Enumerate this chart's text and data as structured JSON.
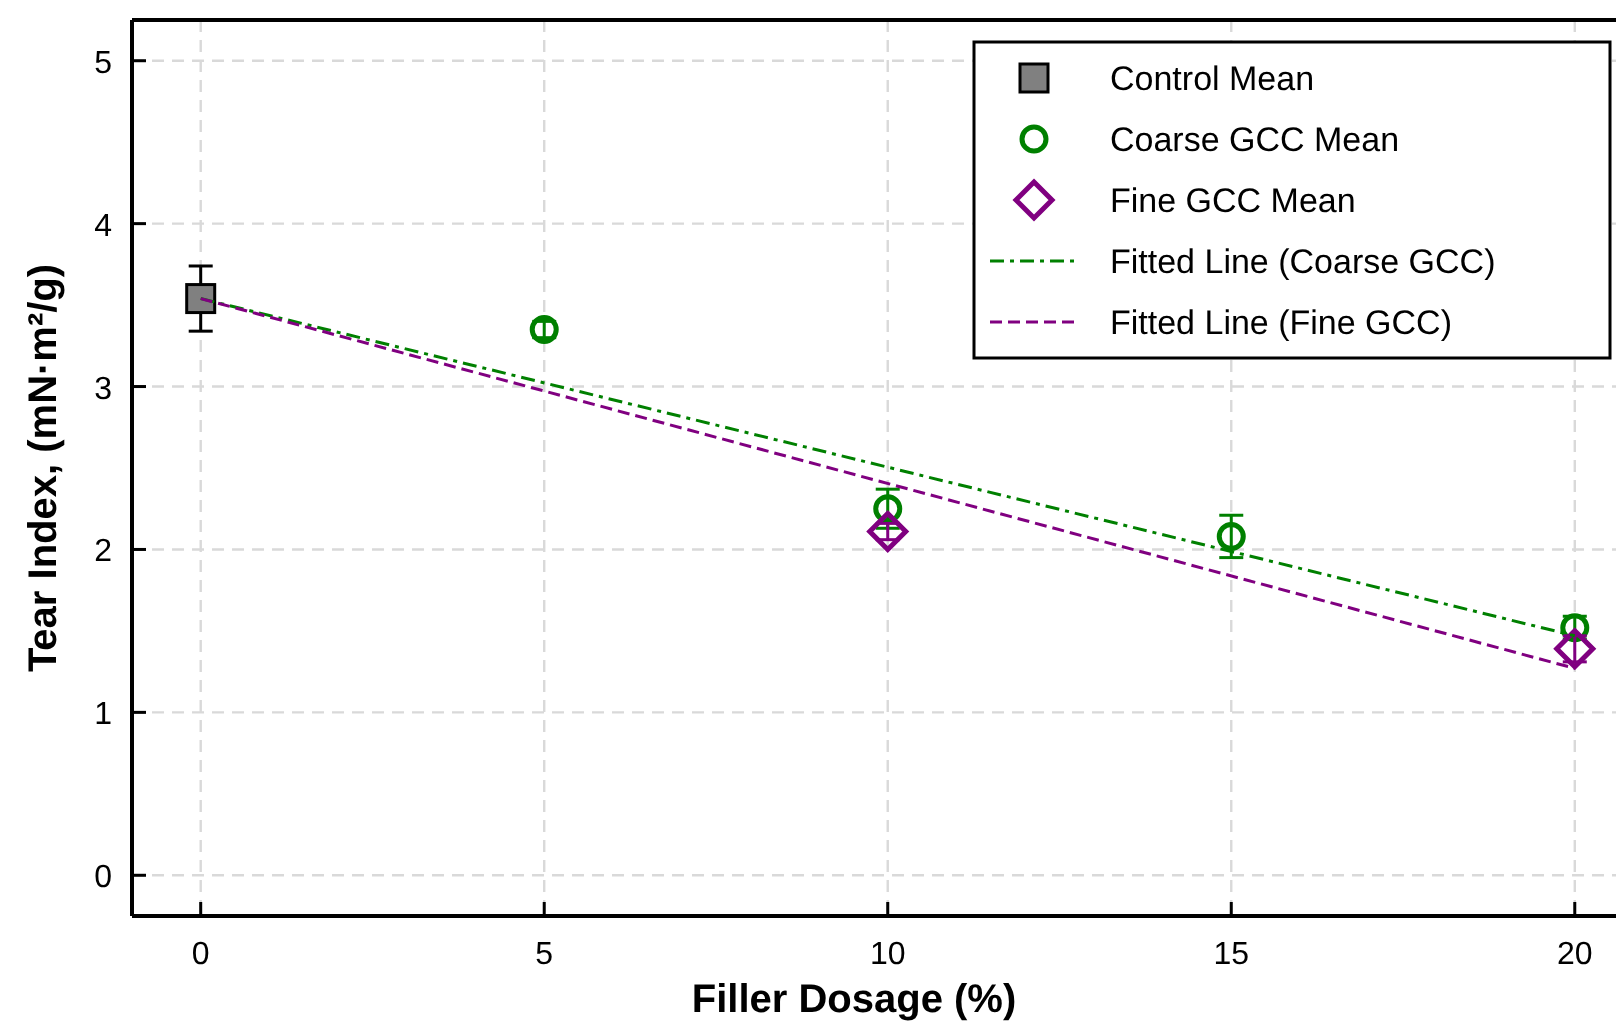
{
  "chart_data": {
    "type": "scatter",
    "xlabel": "Filler Dosage (%)",
    "ylabel": "Tear Index, (mN·m²/g)",
    "xlim": [
      -1,
      20.6
    ],
    "ylim": [
      -0.25,
      5.25
    ],
    "xticks": [
      0,
      5,
      10,
      15,
      20
    ],
    "yticks": [
      0,
      1,
      2,
      3,
      4,
      5
    ],
    "grid": true,
    "legend": "top right",
    "series": [
      {
        "name": "Control Mean",
        "marker": "square",
        "color": "#808080",
        "x": [
          0
        ],
        "values": [
          3.54
        ],
        "errors": [
          0.2
        ]
      },
      {
        "name": "Coarse GCC Mean",
        "marker": "circle",
        "color": "#008000",
        "x": [
          5,
          10,
          15,
          20
        ],
        "values": [
          3.35,
          2.25,
          2.08,
          1.52
        ],
        "errors": [
          0.05,
          0.12,
          0.13,
          0.07
        ]
      },
      {
        "name": "Fine GCC Mean",
        "marker": "diamond",
        "color": "#800080",
        "x": [
          10,
          20
        ],
        "values": [
          2.11,
          1.39
        ],
        "errors": [
          0.05,
          0.08
        ]
      },
      {
        "name": "Fitted Line (Coarse GCC)",
        "type": "line",
        "line_style": "dashdot",
        "color": "#008000",
        "x": [
          0,
          20
        ],
        "values": [
          3.54,
          1.47
        ]
      },
      {
        "name": "Fitted Line (Fine GCC)",
        "type": "line",
        "line_style": "dashed",
        "color": "#800080",
        "x": [
          0,
          20
        ],
        "values": [
          3.54,
          1.27
        ]
      }
    ]
  }
}
